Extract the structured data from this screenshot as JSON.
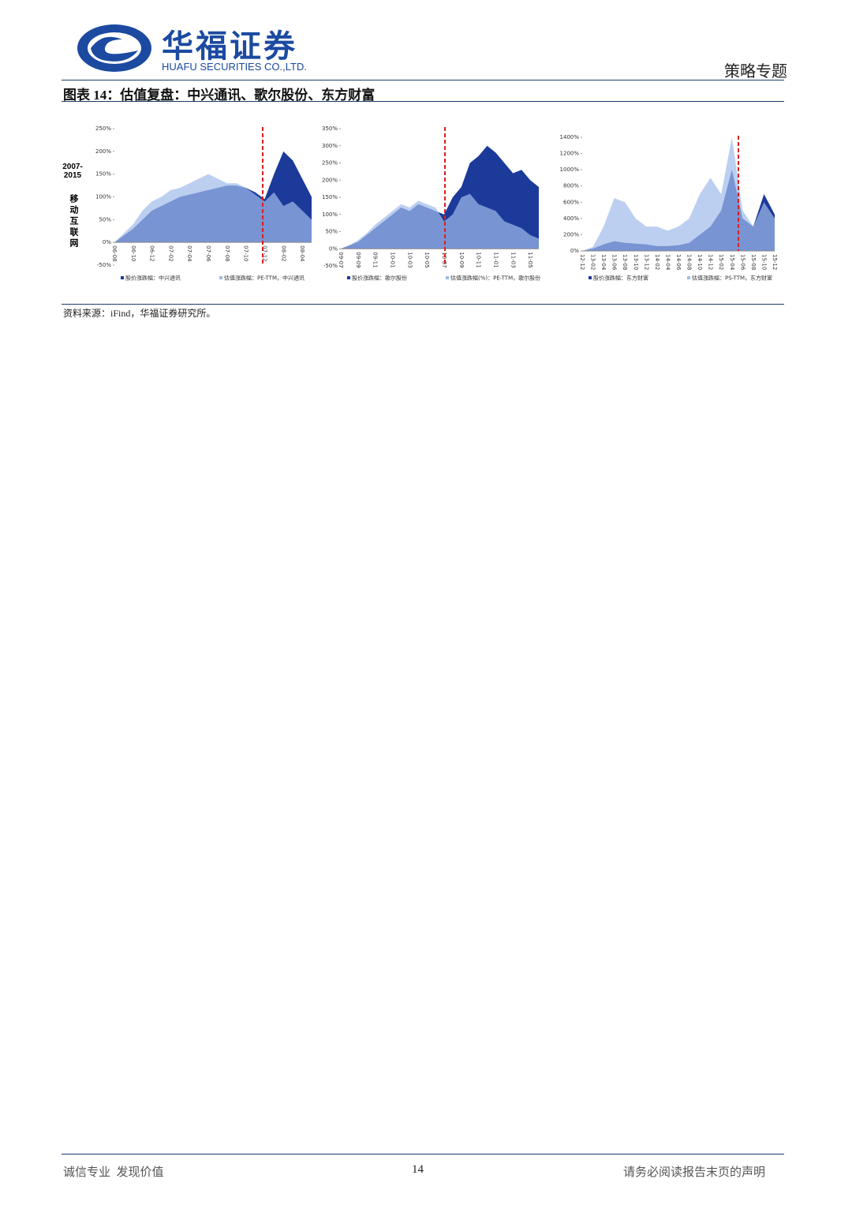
{
  "header": {
    "company_cn": "华福证券",
    "company_en": "HUAFU SECURITIES CO.,LTD.",
    "section": "策略专题"
  },
  "figure": {
    "title": "图表 14：估值复盘：中兴通讯、歌尔股份、东方财富",
    "side_label": {
      "years": "2007-2015",
      "topic": "移动互联网"
    }
  },
  "chart_data": [
    {
      "type": "area",
      "categories": [
        "06-08",
        null,
        "06-10",
        null,
        "06-12",
        null,
        "07-02",
        null,
        "07-04",
        null,
        "07-06",
        null,
        "07-08",
        null,
        "07-10",
        null,
        "07-12",
        null,
        "08-02",
        null,
        "08-04",
        null
      ],
      "series": [
        {
          "name": "股价涨跌幅：中兴通讯",
          "color": "#1b3a9a",
          "values": [
            0,
            15,
            30,
            50,
            70,
            80,
            90,
            100,
            105,
            110,
            115,
            120,
            125,
            125,
            120,
            110,
            95,
            150,
            200,
            180,
            140,
            100
          ]
        },
        {
          "name": "估值涨跌幅：PE-TTM，中兴通讯",
          "color": "#9fbbe9",
          "values": [
            0,
            20,
            40,
            70,
            90,
            100,
            115,
            120,
            130,
            140,
            150,
            140,
            130,
            130,
            120,
            105,
            90,
            110,
            80,
            90,
            70,
            50
          ]
        }
      ],
      "ylim": [
        -50,
        250
      ],
      "yticks": [
        {
          "value": -50,
          "label": "-50%"
        },
        {
          "value": 0,
          "label": "0%"
        },
        {
          "value": 50,
          "label": "50%"
        },
        {
          "value": 100,
          "label": "100%"
        },
        {
          "value": 150,
          "label": "150%"
        },
        {
          "value": 200,
          "label": "200%"
        },
        {
          "value": 250,
          "label": "250%"
        }
      ]
    },
    {
      "type": "area",
      "categories": [
        "09-07",
        null,
        "09-09",
        null,
        "09-11",
        null,
        "10-01",
        null,
        "10-03",
        null,
        "10-05",
        null,
        "10-07",
        null,
        "10-09",
        null,
        "10-11",
        null,
        "11-01",
        null,
        "11-03",
        null,
        "11-05",
        null
      ],
      "series": [
        {
          "name": "股价涨跌幅：歌尔股份",
          "color": "#1b3a9a",
          "values": [
            0,
            10,
            20,
            40,
            60,
            80,
            100,
            120,
            110,
            130,
            120,
            110,
            100,
            150,
            180,
            250,
            270,
            300,
            280,
            250,
            220,
            230,
            200,
            180
          ]
        },
        {
          "name": "估值涨跌幅(%)：PE-TTM，歌尔股份",
          "color": "#9fbbe9",
          "values": [
            0,
            10,
            25,
            45,
            70,
            90,
            110,
            130,
            120,
            140,
            130,
            120,
            80,
            100,
            150,
            160,
            130,
            120,
            110,
            80,
            70,
            60,
            40,
            30
          ]
        }
      ],
      "ylim": [
        -50,
        350
      ],
      "yticks": [
        {
          "value": -50,
          "label": "-50%"
        },
        {
          "value": 0,
          "label": "0%"
        },
        {
          "value": 50,
          "label": "50%"
        },
        {
          "value": 100,
          "label": "100%"
        },
        {
          "value": 150,
          "label": "150%"
        },
        {
          "value": 200,
          "label": "200%"
        },
        {
          "value": 250,
          "label": "250%"
        },
        {
          "value": 300,
          "label": "300%"
        },
        {
          "value": 350,
          "label": "350%"
        }
      ]
    },
    {
      "type": "area",
      "categories": [
        "12-12",
        "13-02",
        "13-04",
        "13-06",
        "13-08",
        "13-10",
        "13-12",
        "14-02",
        "14-04",
        "14-06",
        "14-08",
        "14-10",
        "14-12",
        "15-02",
        "15-04",
        "15-06",
        "15-08",
        "15-10",
        "15-12"
      ],
      "series": [
        {
          "name": "股价涨跌幅：东方财富",
          "color": "#1b3a9a",
          "values": [
            0,
            30,
            80,
            120,
            100,
            90,
            80,
            60,
            60,
            70,
            100,
            200,
            300,
            500,
            1000,
            400,
            300,
            700,
            450
          ]
        },
        {
          "name": "估值涨跌幅：PS-TTM，东方财富",
          "color": "#9fbbe9",
          "values": [
            0,
            50,
            300,
            650,
            600,
            400,
            300,
            300,
            250,
            300,
            400,
            700,
            900,
            700,
            1400,
            500,
            300,
            600,
            400
          ]
        }
      ],
      "ylim": [
        0,
        1400
      ],
      "yticks": [
        {
          "value": 0,
          "label": "0%"
        },
        {
          "value": 200,
          "label": "200%"
        },
        {
          "value": 400,
          "label": "400%"
        },
        {
          "value": 600,
          "label": "600%"
        },
        {
          "value": 800,
          "label": "800%"
        },
        {
          "value": 1000,
          "label": "1000%"
        },
        {
          "value": 1200,
          "label": "1200%"
        },
        {
          "value": 1400,
          "label": "1400%"
        }
      ]
    }
  ],
  "source": "资料来源：iFind，华福证券研究所。",
  "footer": {
    "motto": "诚信专业  发现价值",
    "page": "14",
    "disclaimer": "请务必阅读报告末页的声明"
  }
}
